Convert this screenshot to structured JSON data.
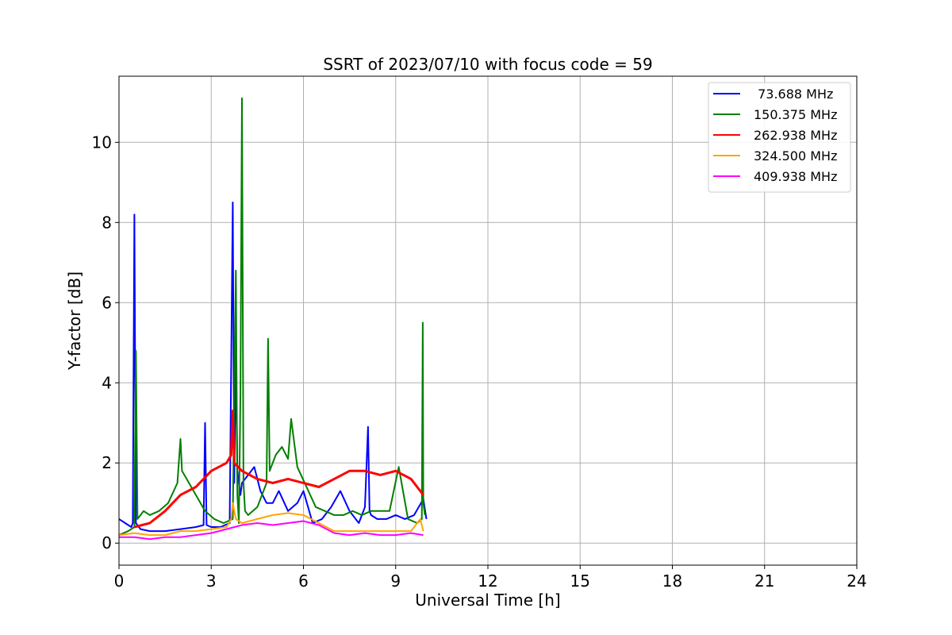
{
  "chart_data": {
    "type": "line",
    "title": "SSRT of 2023/07/10 with focus code = 59",
    "xlabel": "Universal Time [h]",
    "ylabel": "Y-factor [dB]",
    "xlim": [
      0,
      24
    ],
    "ylim": [
      -0.55,
      11.65
    ],
    "xticks": [
      0,
      3,
      6,
      9,
      12,
      15,
      18,
      21,
      24
    ],
    "yticks": [
      0,
      2,
      4,
      6,
      8,
      10
    ],
    "grid": true,
    "legend_position": "top-right",
    "series": [
      {
        "name": " 73.688 MHz",
        "color": "#0000ff",
        "x": [
          0,
          0.2,
          0.4,
          0.45,
          0.5,
          0.55,
          0.7,
          1.0,
          1.5,
          2.0,
          2.5,
          2.75,
          2.8,
          2.85,
          3.0,
          3.3,
          3.6,
          3.7,
          3.75,
          3.8,
          3.85,
          3.9,
          3.95,
          4.0,
          4.2,
          4.4,
          4.6,
          4.8,
          5.0,
          5.2,
          5.5,
          5.8,
          6.0,
          6.3,
          6.6,
          6.9,
          7.2,
          7.5,
          7.8,
          8.0,
          8.1,
          8.15,
          8.2,
          8.4,
          8.7,
          9.0,
          9.3,
          9.6,
          9.9,
          10.0
        ],
        "y": [
          0.6,
          0.5,
          0.4,
          0.5,
          8.2,
          0.5,
          0.35,
          0.3,
          0.3,
          0.35,
          0.4,
          0.45,
          3.0,
          0.45,
          0.4,
          0.4,
          0.5,
          8.5,
          1.5,
          4.7,
          1.8,
          1.5,
          1.2,
          1.5,
          1.7,
          1.9,
          1.3,
          1.0,
          1.0,
          1.3,
          0.8,
          1.0,
          1.3,
          0.5,
          0.6,
          0.9,
          1.3,
          0.8,
          0.5,
          0.9,
          2.9,
          0.8,
          0.7,
          0.6,
          0.6,
          0.7,
          0.6,
          0.7,
          1.1,
          0.6
        ]
      },
      {
        "name": "150.375 MHz",
        "color": "#008000",
        "x": [
          0,
          0.3,
          0.5,
          0.55,
          0.6,
          0.8,
          1.0,
          1.3,
          1.6,
          1.9,
          2.0,
          2.05,
          2.2,
          2.5,
          2.8,
          3.1,
          3.4,
          3.7,
          3.8,
          3.85,
          3.9,
          3.95,
          4.0,
          4.02,
          4.05,
          4.1,
          4.2,
          4.5,
          4.8,
          4.85,
          4.9,
          5.1,
          5.3,
          5.5,
          5.6,
          5.8,
          6.1,
          6.4,
          6.7,
          7.0,
          7.3,
          7.6,
          7.9,
          8.2,
          8.5,
          8.8,
          9.1,
          9.4,
          9.7,
          9.85,
          9.88,
          9.9,
          9.95
        ],
        "y": [
          0.2,
          0.3,
          0.4,
          4.8,
          0.6,
          0.8,
          0.7,
          0.8,
          1.0,
          1.5,
          2.6,
          1.8,
          1.6,
          1.2,
          0.8,
          0.6,
          0.5,
          0.6,
          6.8,
          1.2,
          0.5,
          3.8,
          11.1,
          7.0,
          1.5,
          0.8,
          0.7,
          0.9,
          1.5,
          5.1,
          1.8,
          2.2,
          2.4,
          2.1,
          3.1,
          1.9,
          1.4,
          0.9,
          0.8,
          0.7,
          0.7,
          0.8,
          0.7,
          0.8,
          0.8,
          0.8,
          1.9,
          0.6,
          0.5,
          0.6,
          5.5,
          1.0,
          0.7
        ]
      },
      {
        "name": "262.938 MHz",
        "color": "#ff0000",
        "x": [
          0.5,
          1.0,
          1.5,
          2.0,
          2.5,
          3.0,
          3.5,
          3.65,
          3.7,
          3.75,
          4.0,
          4.5,
          5.0,
          5.5,
          6.0,
          6.5,
          7.0,
          7.5,
          8.0,
          8.5,
          9.0,
          9.5,
          9.9
        ],
        "y": [
          0.4,
          0.5,
          0.8,
          1.2,
          1.4,
          1.8,
          2.0,
          2.2,
          3.3,
          2.0,
          1.8,
          1.6,
          1.5,
          1.6,
          1.5,
          1.4,
          1.6,
          1.8,
          1.8,
          1.7,
          1.8,
          1.6,
          1.2
        ]
      },
      {
        "name": "324.500 MHz",
        "color": "#ffa500",
        "x": [
          0,
          0.5,
          1.0,
          1.5,
          2.0,
          2.5,
          3.0,
          3.5,
          3.65,
          3.7,
          3.8,
          4.0,
          4.5,
          5.0,
          5.5,
          6.0,
          6.5,
          7.0,
          7.5,
          8.0,
          8.5,
          9.0,
          9.5,
          9.8,
          9.9
        ],
        "y": [
          0.2,
          0.25,
          0.2,
          0.2,
          0.3,
          0.3,
          0.35,
          0.4,
          0.6,
          1.0,
          0.6,
          0.5,
          0.6,
          0.7,
          0.75,
          0.7,
          0.5,
          0.3,
          0.3,
          0.3,
          0.3,
          0.3,
          0.3,
          0.6,
          0.3
        ]
      },
      {
        "name": "409.938 MHz",
        "color": "#ff00ff",
        "x": [
          0,
          0.5,
          1.0,
          1.5,
          2.0,
          2.5,
          3.0,
          3.5,
          4.0,
          4.5,
          5.0,
          5.5,
          6.0,
          6.5,
          7.0,
          7.5,
          8.0,
          8.5,
          9.0,
          9.5,
          9.9
        ],
        "y": [
          0.15,
          0.15,
          0.1,
          0.15,
          0.15,
          0.2,
          0.25,
          0.35,
          0.45,
          0.5,
          0.45,
          0.5,
          0.55,
          0.45,
          0.25,
          0.2,
          0.25,
          0.2,
          0.2,
          0.25,
          0.2
        ]
      }
    ]
  }
}
